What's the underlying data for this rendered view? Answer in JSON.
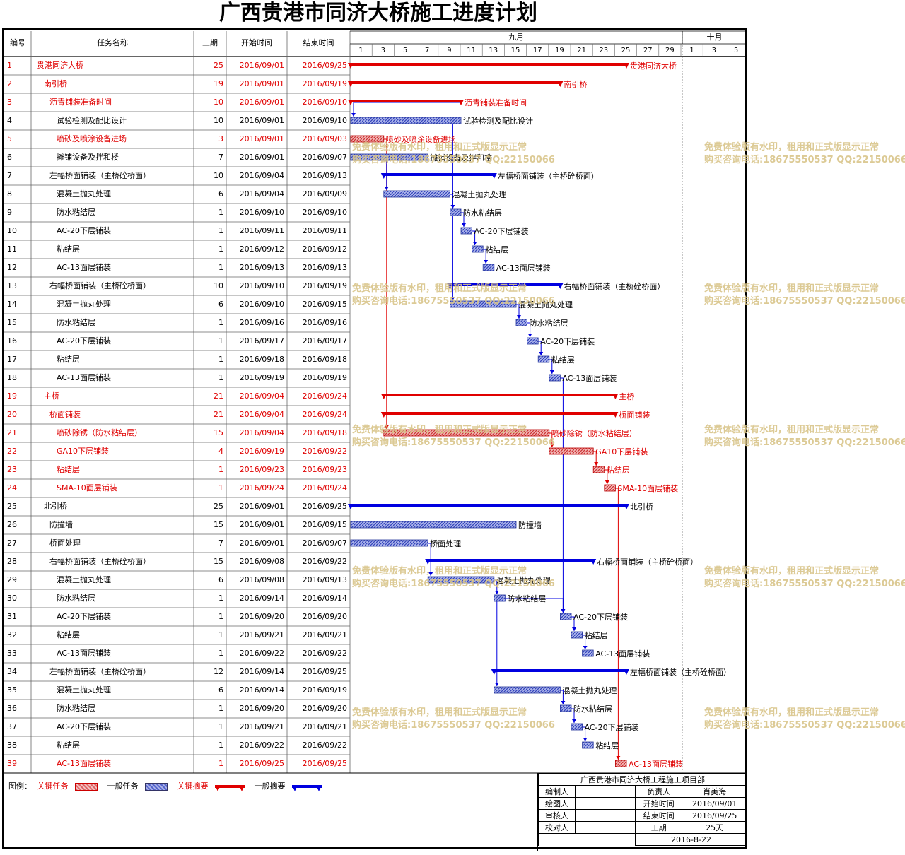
{
  "title": "广西贵港市同济大桥施工进度计划",
  "columns": {
    "id": "编号",
    "name": "任务名称",
    "dur": "工期",
    "start": "开始时间",
    "end": "结束时间"
  },
  "months": [
    {
      "label": "九月"
    },
    {
      "label": "十月"
    }
  ],
  "day_ticks": [
    "1",
    "3",
    "5",
    "7",
    "9",
    "11",
    "13",
    "15",
    "17",
    "19",
    "21",
    "23",
    "25",
    "27",
    "29",
    "1",
    "3",
    "5"
  ],
  "colors": {
    "critical": "#e00000",
    "normal": "#0000e0",
    "critical_task_fill": "#e88f8f",
    "normal_task_fill": "#6f7fe0"
  },
  "chart_data": {
    "type": "gantt",
    "title": "广西贵港市同济大桥施工进度计划",
    "x_unit": "date",
    "xlim": [
      "2016/09/01",
      "2016/10/06"
    ],
    "tasks": [
      {
        "id": "1",
        "name": "贵港同济大桥",
        "dur": "25",
        "start": "2016/09/01",
        "end": "2016/09/25",
        "level": 0,
        "summary": true,
        "critical": true,
        "s": 1,
        "e": 25
      },
      {
        "id": "2",
        "name": "南引桥",
        "dur": "19",
        "start": "2016/09/01",
        "end": "2016/09/19",
        "level": 1,
        "summary": true,
        "critical": true,
        "s": 1,
        "e": 19
      },
      {
        "id": "3",
        "name": "沥青铺装准备时间",
        "dur": "10",
        "start": "2016/09/01",
        "end": "2016/09/10",
        "level": 2,
        "summary": true,
        "critical": true,
        "s": 1,
        "e": 10
      },
      {
        "id": "4",
        "name": "试验检测及配比设计",
        "dur": "10",
        "start": "2016/09/01",
        "end": "2016/09/10",
        "level": 3,
        "summary": false,
        "critical": false,
        "s": 1,
        "e": 10
      },
      {
        "id": "5",
        "name": "喷砂及喷涂设备进场",
        "dur": "3",
        "start": "2016/09/01",
        "end": "2016/09/03",
        "level": 3,
        "summary": false,
        "critical": true,
        "s": 1,
        "e": 3
      },
      {
        "id": "6",
        "name": "摊铺设备及拌和楼",
        "dur": "7",
        "start": "2016/09/01",
        "end": "2016/09/07",
        "level": 3,
        "summary": false,
        "critical": false,
        "s": 1,
        "e": 7
      },
      {
        "id": "7",
        "name": "左幅桥面铺装（主桥砼桥面）",
        "dur": "10",
        "start": "2016/09/04",
        "end": "2016/09/13",
        "level": 2,
        "summary": true,
        "critical": false,
        "s": 4,
        "e": 13
      },
      {
        "id": "8",
        "name": "混凝土抛丸处理",
        "dur": "6",
        "start": "2016/09/04",
        "end": "2016/09/09",
        "level": 3,
        "summary": false,
        "critical": false,
        "s": 4,
        "e": 9
      },
      {
        "id": "9",
        "name": "防水粘结层",
        "dur": "1",
        "start": "2016/09/10",
        "end": "2016/09/10",
        "level": 3,
        "summary": false,
        "critical": false,
        "s": 10,
        "e": 10
      },
      {
        "id": "10",
        "name": "AC-20下层铺装",
        "dur": "1",
        "start": "2016/09/11",
        "end": "2016/09/11",
        "level": 3,
        "summary": false,
        "critical": false,
        "s": 11,
        "e": 11
      },
      {
        "id": "11",
        "name": "粘结层",
        "dur": "1",
        "start": "2016/09/12",
        "end": "2016/09/12",
        "level": 3,
        "summary": false,
        "critical": false,
        "s": 12,
        "e": 12
      },
      {
        "id": "12",
        "name": "AC-13面层铺装",
        "dur": "1",
        "start": "2016/09/13",
        "end": "2016/09/13",
        "level": 3,
        "summary": false,
        "critical": false,
        "s": 13,
        "e": 13
      },
      {
        "id": "13",
        "name": "右幅桥面铺装（主桥砼桥面）",
        "dur": "10",
        "start": "2016/09/10",
        "end": "2016/09/19",
        "level": 2,
        "summary": true,
        "critical": false,
        "s": 10,
        "e": 19
      },
      {
        "id": "14",
        "name": "混凝土抛丸处理",
        "dur": "6",
        "start": "2016/09/10",
        "end": "2016/09/15",
        "level": 3,
        "summary": false,
        "critical": false,
        "s": 10,
        "e": 15
      },
      {
        "id": "15",
        "name": "防水粘结层",
        "dur": "1",
        "start": "2016/09/16",
        "end": "2016/09/16",
        "level": 3,
        "summary": false,
        "critical": false,
        "s": 16,
        "e": 16
      },
      {
        "id": "16",
        "name": "AC-20下层铺装",
        "dur": "1",
        "start": "2016/09/17",
        "end": "2016/09/17",
        "level": 3,
        "summary": false,
        "critical": false,
        "s": 17,
        "e": 17
      },
      {
        "id": "17",
        "name": "粘结层",
        "dur": "1",
        "start": "2016/09/18",
        "end": "2016/09/18",
        "level": 3,
        "summary": false,
        "critical": false,
        "s": 18,
        "e": 18
      },
      {
        "id": "18",
        "name": "AC-13面层铺装",
        "dur": "1",
        "start": "2016/09/19",
        "end": "2016/09/19",
        "level": 3,
        "summary": false,
        "critical": false,
        "s": 19,
        "e": 19
      },
      {
        "id": "19",
        "name": "主桥",
        "dur": "21",
        "start": "2016/09/04",
        "end": "2016/09/24",
        "level": 1,
        "summary": true,
        "critical": true,
        "s": 4,
        "e": 24
      },
      {
        "id": "20",
        "name": "桥面铺装",
        "dur": "21",
        "start": "2016/09/04",
        "end": "2016/09/24",
        "level": 2,
        "summary": true,
        "critical": true,
        "s": 4,
        "e": 24
      },
      {
        "id": "21",
        "name": "喷砂除锈（防水粘结层）",
        "dur": "15",
        "start": "2016/09/04",
        "end": "2016/09/18",
        "level": 3,
        "summary": false,
        "critical": true,
        "s": 4,
        "e": 18
      },
      {
        "id": "22",
        "name": "GA10下层铺装",
        "dur": "4",
        "start": "2016/09/19",
        "end": "2016/09/22",
        "level": 3,
        "summary": false,
        "critical": true,
        "s": 19,
        "e": 22
      },
      {
        "id": "23",
        "name": "粘结层",
        "dur": "1",
        "start": "2016/09/23",
        "end": "2016/09/23",
        "level": 3,
        "summary": false,
        "critical": true,
        "s": 23,
        "e": 23
      },
      {
        "id": "24",
        "name": "SMA-10面层铺装",
        "dur": "1",
        "start": "2016/09/24",
        "end": "2016/09/24",
        "level": 3,
        "summary": false,
        "critical": true,
        "s": 24,
        "e": 24
      },
      {
        "id": "25",
        "name": "北引桥",
        "dur": "25",
        "start": "2016/09/01",
        "end": "2016/09/25",
        "level": 1,
        "summary": true,
        "critical": false,
        "s": 1,
        "e": 25
      },
      {
        "id": "26",
        "name": "防撞墙",
        "dur": "15",
        "start": "2016/09/01",
        "end": "2016/09/15",
        "level": 2,
        "summary": false,
        "critical": false,
        "s": 1,
        "e": 15
      },
      {
        "id": "27",
        "name": "桥面处理",
        "dur": "7",
        "start": "2016/09/01",
        "end": "2016/09/07",
        "level": 2,
        "summary": false,
        "critical": false,
        "s": 1,
        "e": 7
      },
      {
        "id": "28",
        "name": "右幅桥面铺装（主桥砼桥面）",
        "dur": "15",
        "start": "2016/09/08",
        "end": "2016/09/22",
        "level": 2,
        "summary": true,
        "critical": false,
        "s": 8,
        "e": 22
      },
      {
        "id": "29",
        "name": "混凝土抛丸处理",
        "dur": "6",
        "start": "2016/09/08",
        "end": "2016/09/13",
        "level": 3,
        "summary": false,
        "critical": false,
        "s": 8,
        "e": 13
      },
      {
        "id": "30",
        "name": "防水粘结层",
        "dur": "1",
        "start": "2016/09/14",
        "end": "2016/09/14",
        "level": 3,
        "summary": false,
        "critical": false,
        "s": 14,
        "e": 14
      },
      {
        "id": "31",
        "name": "AC-20下层铺装",
        "dur": "1",
        "start": "2016/09/20",
        "end": "2016/09/20",
        "level": 3,
        "summary": false,
        "critical": false,
        "s": 20,
        "e": 20
      },
      {
        "id": "32",
        "name": "粘结层",
        "dur": "1",
        "start": "2016/09/21",
        "end": "2016/09/21",
        "level": 3,
        "summary": false,
        "critical": false,
        "s": 21,
        "e": 21
      },
      {
        "id": "33",
        "name": "AC-13面层铺装",
        "dur": "1",
        "start": "2016/09/22",
        "end": "2016/09/22",
        "level": 3,
        "summary": false,
        "critical": false,
        "s": 22,
        "e": 22
      },
      {
        "id": "34",
        "name": "左幅桥面铺装（主桥砼桥面）",
        "dur": "12",
        "start": "2016/09/14",
        "end": "2016/09/25",
        "level": 2,
        "summary": true,
        "critical": false,
        "s": 14,
        "e": 25
      },
      {
        "id": "35",
        "name": "混凝土抛丸处理",
        "dur": "6",
        "start": "2016/09/14",
        "end": "2016/09/19",
        "level": 3,
        "summary": false,
        "critical": false,
        "s": 14,
        "e": 19
      },
      {
        "id": "36",
        "name": "防水粘结层",
        "dur": "1",
        "start": "2016/09/20",
        "end": "2016/09/20",
        "level": 3,
        "summary": false,
        "critical": false,
        "s": 20,
        "e": 20
      },
      {
        "id": "37",
        "name": "AC-20下层铺装",
        "dur": "1",
        "start": "2016/09/21",
        "end": "2016/09/21",
        "level": 3,
        "summary": false,
        "critical": false,
        "s": 21,
        "e": 21
      },
      {
        "id": "38",
        "name": "粘结层",
        "dur": "1",
        "start": "2016/09/22",
        "end": "2016/09/22",
        "level": 3,
        "summary": false,
        "critical": false,
        "s": 22,
        "e": 22
      },
      {
        "id": "39",
        "name": "AC-13面层铺装",
        "dur": "1",
        "start": "2016/09/25",
        "end": "2016/09/25",
        "level": 3,
        "summary": false,
        "critical": true,
        "s": 25,
        "e": 25
      }
    ]
  },
  "legend": {
    "label": "图例：",
    "critical_task": "关键任务",
    "normal_task": "一般任务",
    "critical_summary": "关键摘要",
    "normal_summary": "一般摘要"
  },
  "signoff": {
    "org": "广西贵港市同济大桥工程施工项目部",
    "r1": [
      "编制人",
      "",
      "负责人",
      "肖美海"
    ],
    "r2": [
      "绘图人",
      "",
      "开始时间",
      "2016/09/01"
    ],
    "r3": [
      "审核人",
      "",
      "结束时间",
      "2016/09/25"
    ],
    "r4": [
      "校对人",
      "",
      "工期",
      "25天"
    ],
    "date": "2016-8-22"
  },
  "watermark": {
    "line1": "免费体验版有水印，租用和正式版显示正常",
    "line2": "购买咨询电话:18675550537 QQ:22150066"
  }
}
